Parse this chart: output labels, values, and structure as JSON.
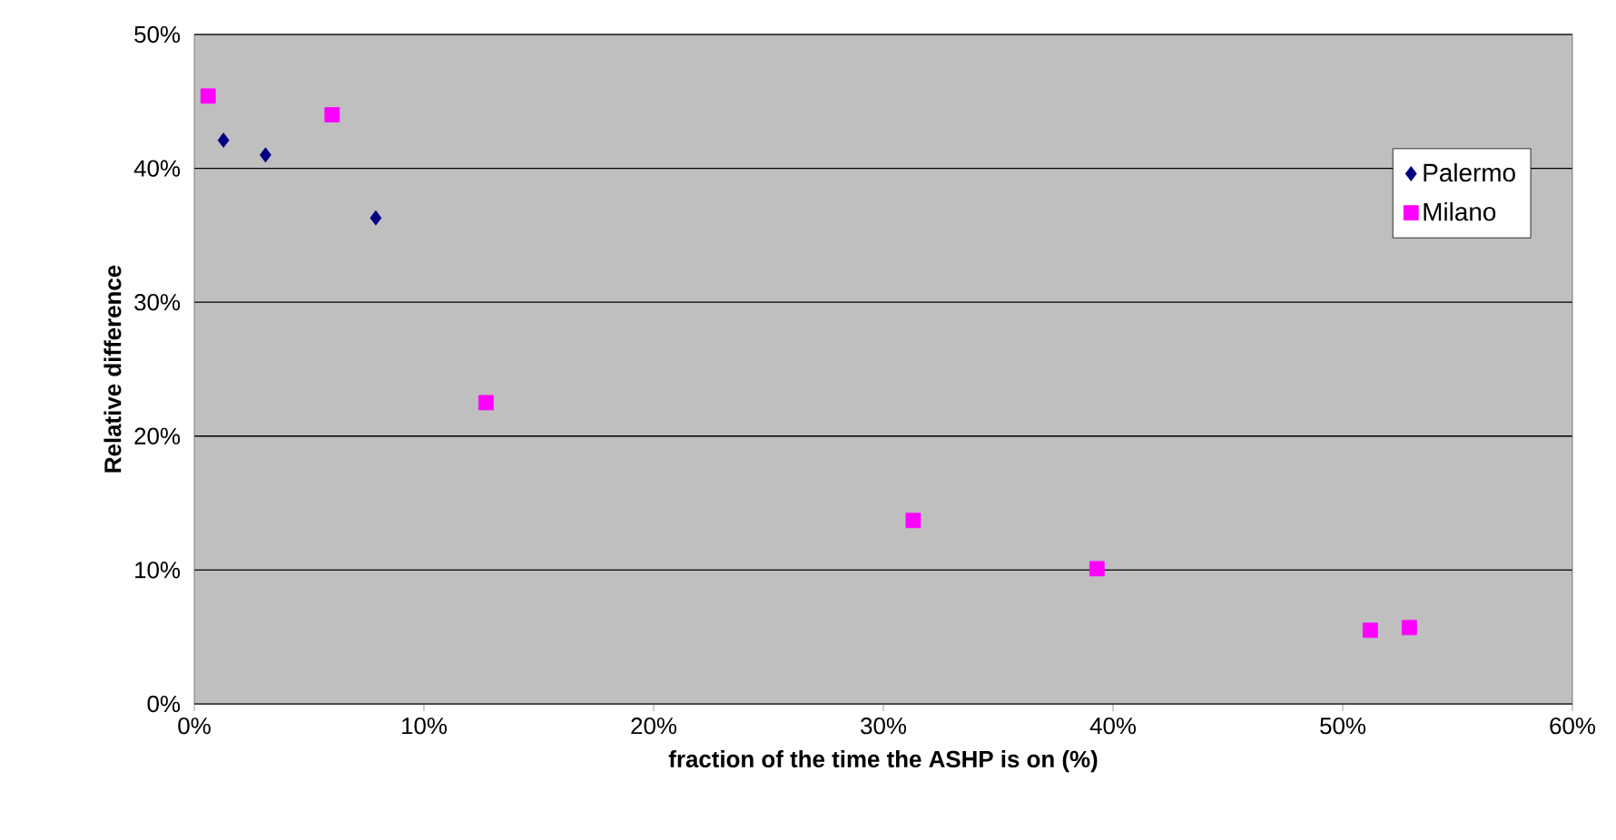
{
  "chart_data": {
    "type": "scatter",
    "xlabel": "fraction of the time the ASHP is on (%)",
    "ylabel": "Relative difference",
    "series": [
      {
        "name": "Palermo",
        "color": "#000080",
        "marker": "diamond",
        "x": [
          1.27,
          3.1,
          7.9
        ],
        "values": [
          42.1,
          41.0,
          36.3
        ]
      },
      {
        "name": "Milano",
        "color": "#ff00ff",
        "marker": "square",
        "x": [
          0.6,
          6.0,
          12.7,
          31.3,
          39.3,
          51.2,
          52.9
        ],
        "values": [
          45.4,
          44.0,
          22.5,
          13.7,
          10.1,
          5.5,
          5.7
        ]
      }
    ],
    "xlim": [
      0,
      60
    ],
    "ylim": [
      0,
      50
    ],
    "xticks": [
      {
        "value": 0,
        "label": "0%"
      },
      {
        "value": 10,
        "label": "10%"
      },
      {
        "value": 20,
        "label": "20%"
      },
      {
        "value": 30,
        "label": "30%"
      },
      {
        "value": 40,
        "label": "40%"
      },
      {
        "value": 50,
        "label": "50%"
      },
      {
        "value": 60,
        "label": "60%"
      }
    ],
    "yticks": [
      {
        "value": 0,
        "label": "0%"
      },
      {
        "value": 10,
        "label": "10%"
      },
      {
        "value": 20,
        "label": "20%"
      },
      {
        "value": 30,
        "label": "30%"
      },
      {
        "value": 40,
        "label": "40%"
      },
      {
        "value": 50,
        "label": "50%"
      }
    ],
    "grid": "y",
    "legend": "top right"
  }
}
